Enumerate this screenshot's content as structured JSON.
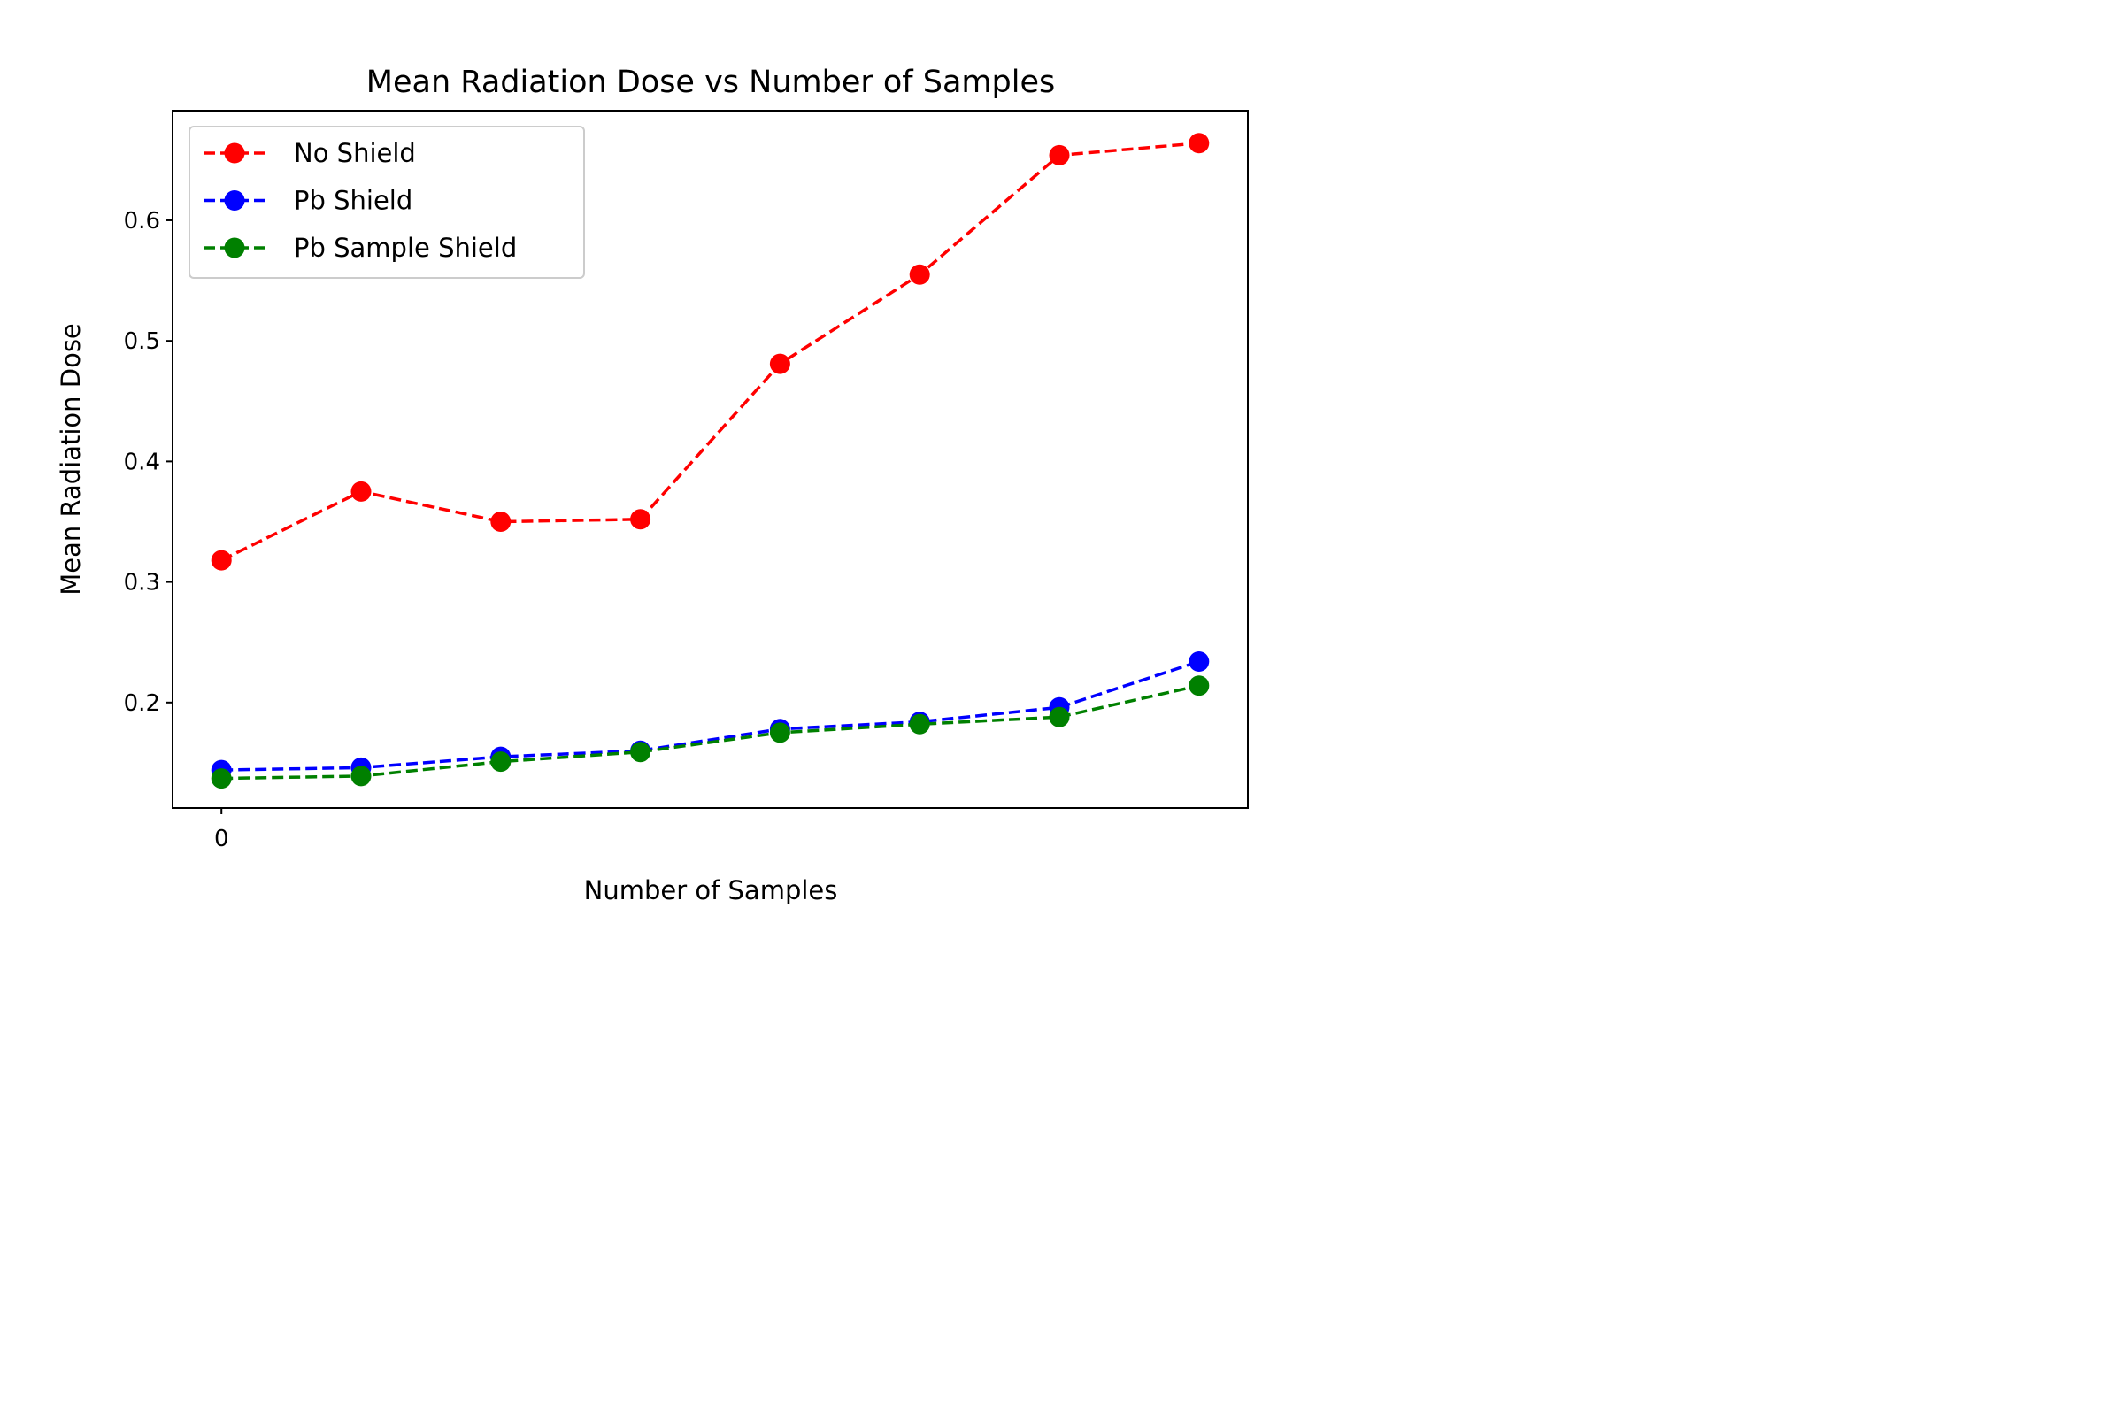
{
  "chart_data": {
    "type": "line",
    "title": "Mean Radiation Dose vs Number of Samples",
    "xlabel": "Number of Samples",
    "ylabel": "Mean Radiation Dose",
    "x": [
      0,
      1,
      2,
      3,
      4,
      5,
      6,
      7
    ],
    "xticks": [
      0
    ],
    "xtick_labels": [
      "0"
    ],
    "yticks": [
      0.2,
      0.3,
      0.4,
      0.5,
      0.6
    ],
    "ytick_labels": [
      "0.2",
      "0.3",
      "0.4",
      "0.5",
      "0.6"
    ],
    "xlim": [
      -0.35,
      7.35
    ],
    "ylim": [
      0.1125,
      0.691
    ],
    "grid": false,
    "legend_position": "top-left",
    "line_style": "dashed",
    "marker": "circle",
    "series": [
      {
        "name": "No Shield",
        "color": "#ff0000",
        "values": [
          0.318,
          0.375,
          0.35,
          0.352,
          0.481,
          0.555,
          0.654,
          0.664
        ]
      },
      {
        "name": "Pb Shield",
        "color": "#0000ff",
        "values": [
          0.144,
          0.146,
          0.155,
          0.16,
          0.178,
          0.184,
          0.196,
          0.234
        ]
      },
      {
        "name": "Pb Sample Shield",
        "color": "#008000",
        "values": [
          0.137,
          0.139,
          0.151,
          0.159,
          0.175,
          0.182,
          0.188,
          0.214
        ]
      }
    ]
  }
}
